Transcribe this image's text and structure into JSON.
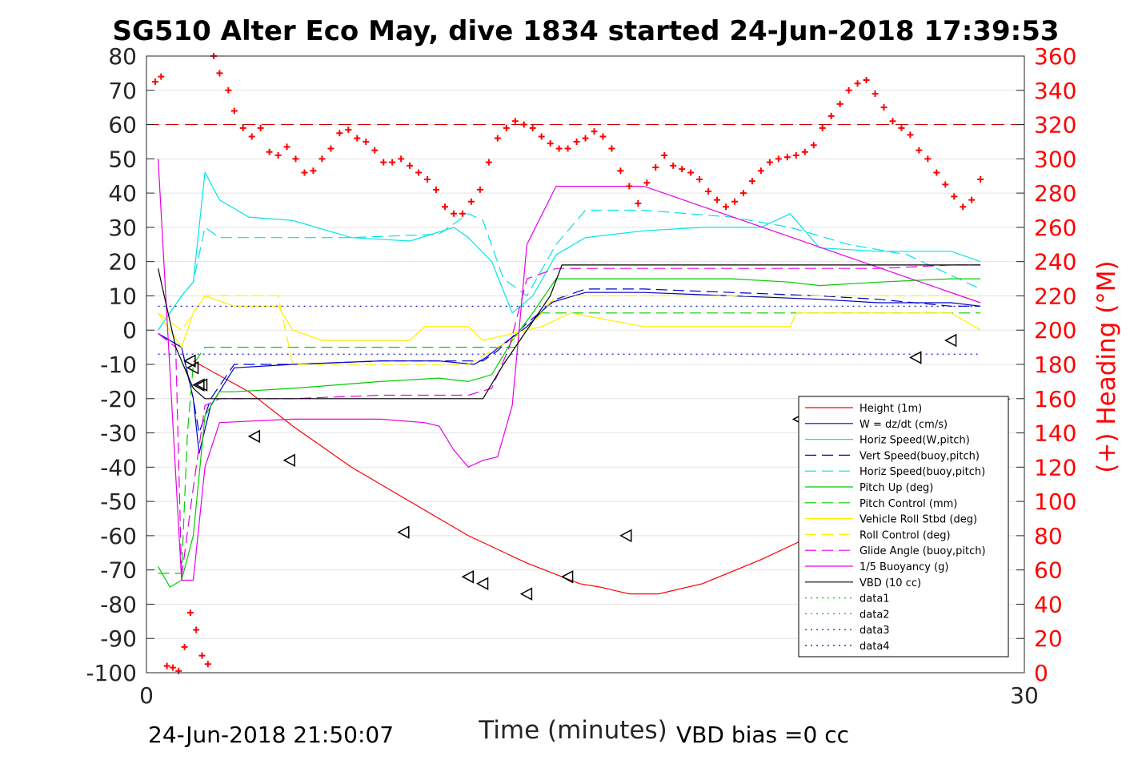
{
  "chart_data": {
    "type": "line",
    "title": "SG510 Alter Eco May, dive 1834 started 24-Jun-2018 17:39:53",
    "xlabel": "Time (minutes)",
    "ylabel": "",
    "y2label": "(+) Heading (°M)",
    "xlim": [
      0,
      30
    ],
    "ylim": [
      -100,
      80
    ],
    "y2lim": [
      0,
      360
    ],
    "x_ticks": [
      "0",
      "30"
    ],
    "y_ticks": [
      "-100",
      "-90",
      "-80",
      "-70",
      "-60",
      "-50",
      "-40",
      "-30",
      "-20",
      "-10",
      "0",
      "10",
      "20",
      "30",
      "40",
      "50",
      "60",
      "70",
      "80"
    ],
    "y2_ticks": [
      "0",
      "20",
      "40",
      "60",
      "80",
      "100",
      "120",
      "140",
      "160",
      "180",
      "200",
      "220",
      "240",
      "260",
      "280",
      "300",
      "320",
      "340",
      "360"
    ],
    "grid": "horizontal",
    "legend_position": "lower-right",
    "footer_left": "24-Jun-2018 21:50:07",
    "footer_right": "VBD bias =0 cc",
    "colors": {
      "red": "#ff0000",
      "blue": "#0000cc",
      "cyan": "#00e5e5",
      "green": "#00cc00",
      "yellow": "#ffee00",
      "magenta": "#e500e5",
      "black": "#000000",
      "darkred": "#cc0000"
    },
    "series": [
      {
        "name": "Height (1m)",
        "color": "#ff0000",
        "dash": "solid",
        "x": [
          1.6,
          3.5,
          5.0,
          7.0,
          9.0,
          11.0,
          13.0,
          14.8,
          15.5,
          16.5,
          17.5,
          19.0,
          21.0,
          23.0,
          25.0,
          27.0,
          28.5,
          29.5
        ],
        "y": [
          -9,
          -18,
          -28,
          -40,
          -50,
          -60,
          -68,
          -74,
          -75,
          -77,
          -77,
          -74,
          -67,
          -59,
          -50,
          -37,
          -28,
          -20
        ]
      },
      {
        "name": "W = dz/dt (cm/s)",
        "color": "#0000cc",
        "dash": "solid",
        "x": [
          0.4,
          1.2,
          1.6,
          1.8,
          2.2,
          3.0,
          5.0,
          8.0,
          10.0,
          11.2,
          11.6,
          12.2,
          13.0,
          13.8,
          15.0,
          17.0,
          20.0,
          23.0,
          25.0,
          27.5,
          28.5
        ],
        "y": [
          -1,
          -5,
          -20,
          -36,
          -22,
          -11,
          -10,
          -9,
          -9,
          -10,
          -8,
          -4,
          1,
          8,
          11,
          11,
          10,
          9,
          8,
          8,
          7
        ]
      },
      {
        "name": "Horiz Speed(W,pitch)",
        "color": "#00e5e5",
        "dash": "solid",
        "x": [
          0.4,
          1.2,
          1.6,
          2.0,
          2.5,
          3.5,
          5.0,
          7.0,
          9.0,
          10.5,
          11.0,
          11.8,
          12.5,
          13.2,
          14.0,
          15.0,
          17.0,
          19.0,
          21.0,
          22.0,
          23.0,
          25.0,
          27.5,
          28.5
        ],
        "y": [
          0,
          10,
          14,
          46,
          38,
          33,
          32,
          27,
          26,
          30,
          27,
          20,
          5,
          10,
          22,
          27,
          29,
          30,
          30,
          34,
          24,
          23,
          23,
          20
        ]
      },
      {
        "name": "Vert Speed(buoy,pitch)",
        "color": "#0000cc",
        "dash": "dash",
        "x": [
          0.4,
          1.2,
          1.6,
          1.8,
          2.2,
          3.0,
          5.0,
          8.0,
          10.0,
          11.5,
          12.0,
          13.0,
          14.0,
          15.0,
          17.0,
          20.0,
          23.0,
          25.0,
          27.5,
          28.5
        ],
        "y": [
          -1,
          -5,
          -20,
          -30,
          -20,
          -10,
          -10,
          -9,
          -9,
          -9,
          -6,
          2,
          9,
          12,
          12,
          11,
          10,
          9,
          7,
          7
        ]
      },
      {
        "name": "Horiz Speed(buoy,pitch)",
        "color": "#00e5e5",
        "dash": "dash",
        "x": [
          0.4,
          1.2,
          1.6,
          2.0,
          2.5,
          3.5,
          7.0,
          10.0,
          11.0,
          11.5,
          12.2,
          13.0,
          14.0,
          15.0,
          17.0,
          20.0,
          22.0,
          24.0,
          26.0,
          28.5
        ],
        "y": [
          0,
          10,
          14,
          30,
          27,
          27,
          27,
          28,
          34,
          32,
          15,
          10,
          25,
          35,
          35,
          33,
          30,
          25,
          22,
          12
        ]
      },
      {
        "name": "Pitch Up (deg)",
        "color": "#00cc00",
        "dash": "solid",
        "x": [
          0.4,
          0.8,
          1.2,
          1.6,
          2.0,
          2.5,
          3.0,
          5.0,
          8.0,
          10.0,
          11.0,
          11.8,
          12.5,
          13.2,
          14.0,
          17.0,
          20.0,
          22.0,
          23.0,
          25.0,
          27.5,
          28.5
        ],
        "y": [
          -69,
          -75,
          -73,
          -60,
          -25,
          -18,
          -18,
          -17,
          -15,
          -14,
          -15,
          -13,
          -3,
          5,
          15,
          15,
          15,
          14,
          13,
          14,
          15,
          15
        ]
      },
      {
        "name": "Pitch Control (mm)",
        "color": "#00cc00",
        "dash": "dash",
        "x": [
          0.4,
          1.2,
          1.4,
          1.6,
          2.0,
          3.0,
          11.0,
          11.8,
          12.6,
          13.4,
          14.0,
          28.5
        ],
        "y": [
          -71,
          -71,
          -30,
          -10,
          -5,
          -5,
          -5,
          -5,
          -5,
          5,
          5,
          5
        ]
      },
      {
        "name": "Vehicle Roll Stbd (deg)",
        "color": "#ffee00",
        "dash": "solid",
        "x": [
          0.4,
          1.2,
          1.6,
          2.0,
          3.0,
          4.5,
          5.0,
          6.0,
          7.0,
          9.0,
          9.5,
          11.0,
          11.5,
          12.5,
          13.5,
          14.5,
          17.0,
          20.0,
          22.0,
          22.2,
          25.0,
          27.5,
          28.5
        ],
        "y": [
          5,
          -5,
          5,
          10,
          7,
          7,
          0,
          -3,
          -3,
          -3,
          1,
          1,
          -3,
          -1,
          1,
          5,
          1,
          1,
          1,
          5,
          5,
          5,
          0
        ]
      },
      {
        "name": "Roll Control (deg)",
        "color": "#ffee00",
        "dash": "dash",
        "x": [
          0.4,
          1.2,
          1.6,
          2.0,
          3.0,
          4.5,
          5.0,
          9.5,
          11.0,
          12.0,
          13.0,
          14.0,
          28.5
        ],
        "y": [
          5,
          0,
          5,
          10,
          10,
          10,
          -10,
          -10,
          -10,
          -5,
          0,
          10,
          10
        ]
      },
      {
        "name": "Glide Angle (buoy,pitch)",
        "color": "#e500e5",
        "dash": "dash",
        "x": [
          0.4,
          1.0,
          1.2,
          1.6,
          2.0,
          2.5,
          3.0,
          5.0,
          8.0,
          10.0,
          11.0,
          11.8,
          12.4,
          13.0,
          14.0,
          17.0,
          20.0,
          23.0,
          25.0,
          27.5,
          28.5
        ],
        "y": [
          -1,
          -5,
          -72,
          -46,
          -22,
          -20,
          -20,
          -20,
          -19,
          -19,
          -19,
          -17,
          -5,
          15,
          18,
          18,
          18,
          18,
          18,
          19,
          19
        ]
      },
      {
        "name": "1/5 Buoyancy (g)",
        "color": "#e500e5",
        "dash": "solid",
        "x": [
          0.4,
          1.2,
          1.6,
          2.0,
          2.5,
          5.0,
          8.0,
          9.5,
          10.0,
          10.5,
          11.0,
          11.5,
          12.0,
          12.5,
          13.0,
          14.0,
          17.0,
          28.5
        ],
        "y": [
          50,
          -73,
          -73,
          -40,
          -27,
          -26,
          -26,
          -27,
          -28,
          -35,
          -40,
          -38,
          -37,
          -22,
          25,
          42,
          42,
          8
        ]
      },
      {
        "name": "VBD (10 cc)",
        "color": "#000000",
        "dash": "solid",
        "x": [
          0.4,
          1.0,
          1.6,
          2.0,
          11.5,
          12.2,
          13.0,
          13.8,
          14.2,
          28.5
        ],
        "y": [
          18,
          -5,
          -17,
          -20,
          -20,
          -10,
          0,
          10,
          19,
          19
        ]
      },
      {
        "name": "data1",
        "color": "#00cc00",
        "dash": "dot",
        "x": [],
        "y": []
      },
      {
        "name": "data2",
        "color": "#00cc00",
        "dash": "dot",
        "x": [],
        "y": []
      },
      {
        "name": "data3",
        "color": "#0000cc",
        "dash": "dot",
        "x": [
          0.4,
          28.5
        ],
        "y": [
          7,
          7
        ]
      },
      {
        "name": "data4",
        "color": "#0000cc",
        "dash": "dot",
        "x": [
          0.4,
          28.5
        ],
        "y": [
          -7,
          -7
        ]
      }
    ],
    "heading_target": {
      "value": 320,
      "color": "#cc0000",
      "dash": "dash"
    },
    "heading": {
      "axis": "y2",
      "marker": "+",
      "color": "#ff0000",
      "x": [
        0.3,
        0.5,
        0.7,
        0.9,
        1.1,
        1.3,
        1.5,
        1.7,
        1.9,
        2.1,
        2.3,
        2.5,
        2.8,
        3.0,
        3.3,
        3.6,
        3.9,
        4.2,
        4.5,
        4.8,
        5.1,
        5.4,
        5.7,
        6.0,
        6.3,
        6.6,
        6.9,
        7.2,
        7.5,
        7.8,
        8.1,
        8.4,
        8.7,
        9.0,
        9.3,
        9.6,
        9.9,
        10.2,
        10.5,
        10.8,
        11.1,
        11.4,
        11.7,
        12.0,
        12.3,
        12.6,
        12.9,
        13.2,
        13.5,
        13.8,
        14.1,
        14.4,
        14.7,
        15.0,
        15.3,
        15.6,
        15.9,
        16.2,
        16.5,
        16.8,
        17.1,
        17.4,
        17.7,
        18.0,
        18.3,
        18.6,
        18.9,
        19.2,
        19.5,
        19.8,
        20.1,
        20.4,
        20.7,
        21.0,
        21.3,
        21.6,
        21.9,
        22.2,
        22.5,
        22.8,
        23.1,
        23.4,
        23.7,
        24.0,
        24.3,
        24.6,
        24.9,
        25.2,
        25.5,
        25.8,
        26.1,
        26.4,
        26.7,
        27.0,
        27.3,
        27.6,
        27.9,
        28.2,
        28.5
      ],
      "y": [
        345,
        348,
        4,
        3,
        1,
        15,
        35,
        25,
        10,
        5,
        360,
        350,
        340,
        328,
        318,
        313,
        318,
        304,
        302,
        307,
        300,
        292,
        293,
        300,
        306,
        315,
        317,
        312,
        310,
        305,
        298,
        298,
        300,
        296,
        292,
        288,
        282,
        272,
        268,
        268,
        275,
        282,
        298,
        312,
        318,
        322,
        320,
        318,
        313,
        309,
        306,
        306,
        310,
        312,
        316,
        313,
        306,
        293,
        284,
        274,
        286,
        295,
        302,
        296,
        294,
        292,
        288,
        281,
        276,
        272,
        275,
        280,
        287,
        293,
        298,
        300,
        301,
        302,
        304,
        308,
        318,
        325,
        332,
        340,
        344,
        346,
        338,
        330,
        322,
        318,
        314,
        305,
        300,
        292,
        285,
        278,
        272,
        276,
        288
      ]
    },
    "triangles": {
      "marker": "triangle-left",
      "color": "#000000",
      "x": [
        1.5,
        1.6,
        1.8,
        1.9,
        3.7,
        4.9,
        8.8,
        11.0,
        11.5,
        13.0,
        14.4,
        16.4,
        22.3,
        26.3,
        27.5
      ],
      "y": [
        -9,
        -11,
        -16,
        -16,
        -31,
        -38,
        -59,
        -72,
        -74,
        -77,
        -72,
        -60,
        -26,
        -8,
        -3
      ]
    }
  }
}
